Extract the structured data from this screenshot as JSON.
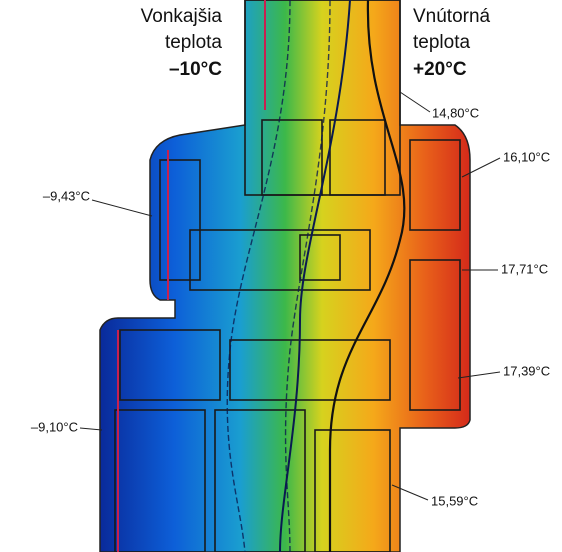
{
  "outside": {
    "lines": [
      "Vonkajšia",
      "teplota",
      "–10°C"
    ]
  },
  "inside": {
    "lines": [
      "Vnútorná",
      "teplota",
      "+20°C"
    ]
  },
  "callouts": [
    {
      "label": "14,80°C"
    },
    {
      "label": "16,10°C"
    },
    {
      "label": "17,71°C"
    },
    {
      "label": "17,39°C"
    },
    {
      "label": "15,59°C"
    },
    {
      "label": "–9,43°C"
    },
    {
      "label": "–9,10°C"
    }
  ]
}
